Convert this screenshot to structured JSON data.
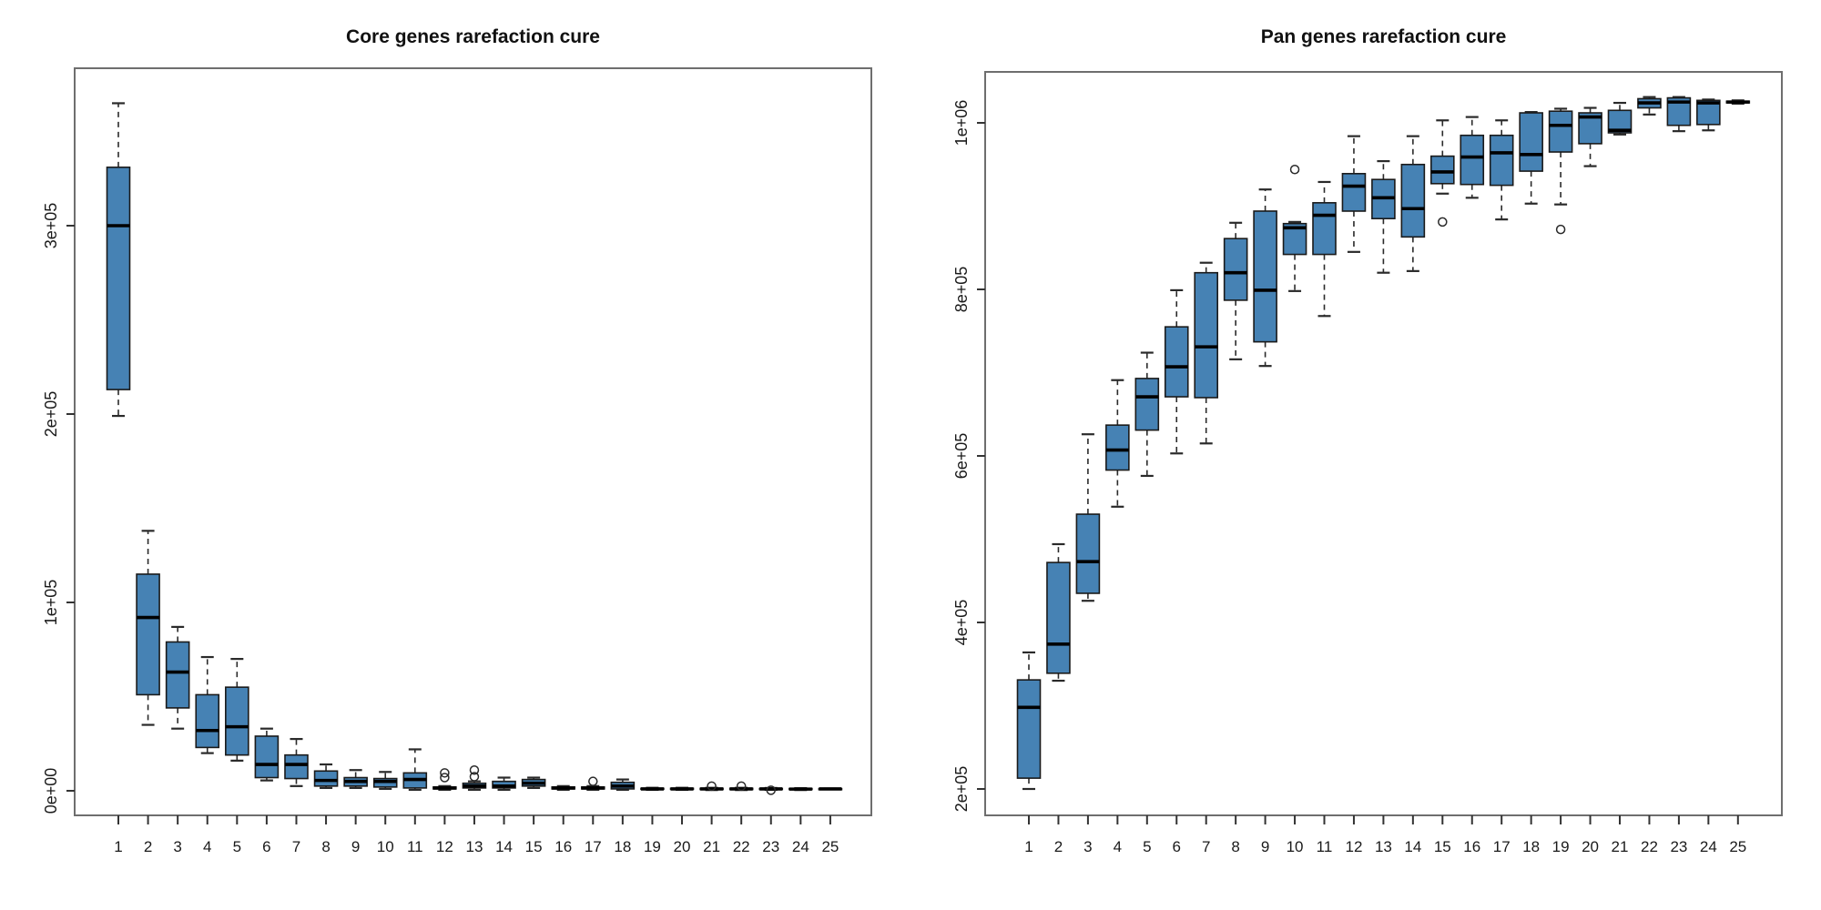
{
  "figure": {
    "background": "#ffffff",
    "style": {
      "box_fill": "#4682b4",
      "box_border": "#1a1a1a",
      "median_color": "#000000",
      "whisker_color": "#2a2a2a",
      "axis_border_color": "#6e6e6e",
      "tick_color": "#333333",
      "text_color": "#1a1a1a"
    }
  },
  "chart_data": [
    {
      "type": "boxplot",
      "title": "Core genes rarefaction cure",
      "xlabel": "",
      "ylabel": "",
      "grid": false,
      "legend": "none",
      "categories": [
        "1",
        "2",
        "3",
        "4",
        "5",
        "6",
        "7",
        "8",
        "9",
        "10",
        "11",
        "12",
        "13",
        "14",
        "15",
        "16",
        "17",
        "18",
        "19",
        "20",
        "21",
        "22",
        "23",
        "24",
        "25"
      ],
      "y_tick_labels": [
        "0e+00",
        "1e+05",
        "2e+05",
        "3e+05"
      ],
      "y_tick_values": [
        0,
        100000,
        200000,
        300000
      ],
      "ylim": [
        0,
        383000
      ],
      "boxes": [
        {
          "low": 199000,
          "q1": 213000,
          "median": 300000,
          "q3": 331000,
          "high": 365000,
          "outliers": []
        },
        {
          "low": 35000,
          "q1": 51000,
          "median": 92000,
          "q3": 115000,
          "high": 138000,
          "outliers": []
        },
        {
          "low": 33000,
          "q1": 44000,
          "median": 63000,
          "q3": 79000,
          "high": 87000,
          "outliers": []
        },
        {
          "low": 20000,
          "q1": 23000,
          "median": 32000,
          "q3": 51000,
          "high": 71000,
          "outliers": []
        },
        {
          "low": 16000,
          "q1": 19000,
          "median": 34000,
          "q3": 55000,
          "high": 70000,
          "outliers": []
        },
        {
          "low": 5500,
          "q1": 7000,
          "median": 14000,
          "q3": 29000,
          "high": 33000,
          "outliers": []
        },
        {
          "low": 2500,
          "q1": 6500,
          "median": 14000,
          "q3": 19000,
          "high": 27500,
          "outliers": []
        },
        {
          "low": 1500,
          "q1": 2500,
          "median": 5500,
          "q3": 10500,
          "high": 14000,
          "outliers": []
        },
        {
          "low": 1500,
          "q1": 2500,
          "median": 5000,
          "q3": 7000,
          "high": 11000,
          "outliers": []
        },
        {
          "low": 1000,
          "q1": 2000,
          "median": 5000,
          "q3": 6500,
          "high": 10000,
          "outliers": []
        },
        {
          "low": 500,
          "q1": 1500,
          "median": 6000,
          "q3": 9500,
          "high": 22000,
          "outliers": []
        },
        {
          "low": 500,
          "q1": 1000,
          "median": 1500,
          "q3": 2000,
          "high": 2500,
          "outliers": [
            7000,
            9500
          ]
        },
        {
          "low": 500,
          "q1": 1500,
          "median": 2500,
          "q3": 4000,
          "high": 5000,
          "outliers": [
            7500,
            11000
          ]
        },
        {
          "low": 500,
          "q1": 1500,
          "median": 2500,
          "q3": 5000,
          "high": 7000,
          "outliers": []
        },
        {
          "low": 1500,
          "q1": 2500,
          "median": 4000,
          "q3": 6000,
          "high": 7000,
          "outliers": []
        },
        {
          "low": 500,
          "q1": 1000,
          "median": 1500,
          "q3": 2000,
          "high": 2500,
          "outliers": []
        },
        {
          "low": 500,
          "q1": 1000,
          "median": 1500,
          "q3": 2000,
          "high": 2500,
          "outliers": [
            5000
          ]
        },
        {
          "low": 500,
          "q1": 1000,
          "median": 2500,
          "q3": 4500,
          "high": 6000,
          "outliers": []
        },
        {
          "low": 500,
          "q1": 800,
          "median": 1000,
          "q3": 1300,
          "high": 1600,
          "outliers": []
        },
        {
          "low": 500,
          "q1": 800,
          "median": 1000,
          "q3": 1300,
          "high": 1600,
          "outliers": []
        },
        {
          "low": 400,
          "q1": 700,
          "median": 1000,
          "q3": 1300,
          "high": 1600,
          "outliers": [
            2500
          ]
        },
        {
          "low": 400,
          "q1": 700,
          "median": 1000,
          "q3": 1300,
          "high": 1600,
          "outliers": [
            2500
          ]
        },
        {
          "low": 500,
          "q1": 800,
          "median": 1000,
          "q3": 1200,
          "high": 1500,
          "outliers": [
            300
          ]
        },
        {
          "low": 400,
          "q1": 700,
          "median": 900,
          "q3": 1200,
          "high": 1400,
          "outliers": []
        },
        {
          "low": 800,
          "q1": 900,
          "median": 1000,
          "q3": 1100,
          "high": 1200,
          "outliers": []
        }
      ]
    },
    {
      "type": "boxplot",
      "title": "Pan genes rarefaction cure",
      "xlabel": "",
      "ylabel": "",
      "grid": false,
      "legend": "none",
      "categories": [
        "1",
        "2",
        "3",
        "4",
        "5",
        "6",
        "7",
        "8",
        "9",
        "10",
        "11",
        "12",
        "13",
        "14",
        "15",
        "16",
        "17",
        "18",
        "19",
        "20",
        "21",
        "22",
        "23",
        "24",
        "25"
      ],
      "y_tick_labels": [
        "2e+05",
        "4e+05",
        "6e+05",
        "8e+05",
        "1e+06"
      ],
      "y_tick_values": [
        200000,
        400000,
        600000,
        800000,
        1000000
      ],
      "ylim": [
        170000,
        1090000
      ],
      "boxes": [
        {
          "low": 200000,
          "q1": 213000,
          "median": 298000,
          "q3": 331000,
          "high": 364000,
          "outliers": []
        },
        {
          "low": 330000,
          "q1": 339000,
          "median": 374000,
          "q3": 472000,
          "high": 494000,
          "outliers": []
        },
        {
          "low": 426000,
          "q1": 435000,
          "median": 473000,
          "q3": 530000,
          "high": 626000,
          "outliers": []
        },
        {
          "low": 539000,
          "q1": 583000,
          "median": 607000,
          "q3": 637000,
          "high": 691000,
          "outliers": []
        },
        {
          "low": 576000,
          "q1": 631000,
          "median": 671000,
          "q3": 693000,
          "high": 724000,
          "outliers": []
        },
        {
          "low": 603000,
          "q1": 671000,
          "median": 707000,
          "q3": 755000,
          "high": 799000,
          "outliers": []
        },
        {
          "low": 615000,
          "q1": 670000,
          "median": 731000,
          "q3": 820000,
          "high": 832000,
          "outliers": []
        },
        {
          "low": 716000,
          "q1": 787000,
          "median": 820000,
          "q3": 861000,
          "high": 880000,
          "outliers": []
        },
        {
          "low": 708000,
          "q1": 737000,
          "median": 799000,
          "q3": 894000,
          "high": 920000,
          "outliers": []
        },
        {
          "low": 798000,
          "q1": 842000,
          "median": 874000,
          "q3": 879000,
          "high": 881000,
          "outliers": [
            944000
          ]
        },
        {
          "low": 768000,
          "q1": 842000,
          "median": 889000,
          "q3": 904000,
          "high": 929000,
          "outliers": []
        },
        {
          "low": 845000,
          "q1": 894000,
          "median": 924000,
          "q3": 939000,
          "high": 984000,
          "outliers": []
        },
        {
          "low": 820000,
          "q1": 885000,
          "median": 910000,
          "q3": 932000,
          "high": 954000,
          "outliers": []
        },
        {
          "low": 822000,
          "q1": 863000,
          "median": 897000,
          "q3": 950000,
          "high": 984000,
          "outliers": []
        },
        {
          "low": 915000,
          "q1": 927000,
          "median": 941000,
          "q3": 960000,
          "high": 1003000,
          "outliers": [
            881000
          ]
        },
        {
          "low": 910000,
          "q1": 926000,
          "median": 959000,
          "q3": 985000,
          "high": 1007000,
          "outliers": []
        },
        {
          "low": 884000,
          "q1": 925000,
          "median": 964000,
          "q3": 985000,
          "high": 1003000,
          "outliers": []
        },
        {
          "low": 903000,
          "q1": 942000,
          "median": 962000,
          "q3": 1012000,
          "high": 1013000,
          "outliers": []
        },
        {
          "low": 902000,
          "q1": 965000,
          "median": 997000,
          "q3": 1014000,
          "high": 1017000,
          "outliers": [
            872000
          ]
        },
        {
          "low": 948000,
          "q1": 975000,
          "median": 1007000,
          "q3": 1012000,
          "high": 1018000,
          "outliers": []
        },
        {
          "low": 986000,
          "q1": 988000,
          "median": 991000,
          "q3": 1015000,
          "high": 1024000,
          "outliers": []
        },
        {
          "low": 1010000,
          "q1": 1018000,
          "median": 1024000,
          "q3": 1029000,
          "high": 1031000,
          "outliers": []
        },
        {
          "low": 990000,
          "q1": 997000,
          "median": 1025000,
          "q3": 1030000,
          "high": 1031000,
          "outliers": []
        },
        {
          "low": 991000,
          "q1": 998000,
          "median": 1024000,
          "q3": 1027000,
          "high": 1028000,
          "outliers": []
        },
        {
          "low": 1023000,
          "q1": 1024000,
          "median": 1025000,
          "q3": 1026000,
          "high": 1027000,
          "outliers": []
        }
      ]
    }
  ]
}
